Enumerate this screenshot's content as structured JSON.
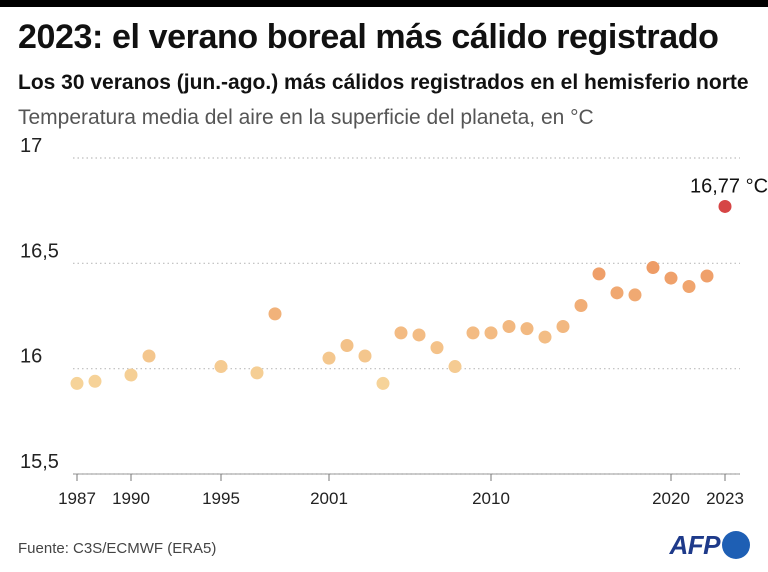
{
  "header": {
    "title": "2023: el verano boreal más cálido registrado",
    "subtitle": "Los 30 veranos (jun.-ago.) más cálidos registrados en el hemisferio norte",
    "unit_label": "Temperatura media del aire en la superficie del planeta, en °C"
  },
  "footer": {
    "source": "Fuente: C3S/ECMWF (ERA5)",
    "logo_text": "AFP"
  },
  "chart_data": {
    "type": "scatter",
    "title": "2023: el verano boreal más cálido registrado",
    "subtitle": "Los 30 veranos (jun.-ago.) más cálidos registrados en el hemisferio norte",
    "ylabel": "Temperatura media del aire en la superficie del planeta, en °C",
    "xlabel": "",
    "xlim": [
      1987,
      2023
    ],
    "ylim": [
      15.5,
      17.0
    ],
    "grid": "horizontal-dotted",
    "x_ticks": [
      1987,
      1990,
      1995,
      2001,
      2010,
      2020,
      2023
    ],
    "y_ticks": [
      {
        "value": 15.5,
        "label": "15,5"
      },
      {
        "value": 16.0,
        "label": "16"
      },
      {
        "value": 16.5,
        "label": "16,5"
      },
      {
        "value": 17.0,
        "label": "17"
      }
    ],
    "color_scale": {
      "low": "#f6d49a",
      "mid": "#ee9a64",
      "high": "#d64545"
    },
    "points": [
      {
        "x": 1987,
        "y": 15.93
      },
      {
        "x": 1988,
        "y": 15.94
      },
      {
        "x": 1990,
        "y": 15.97
      },
      {
        "x": 1991,
        "y": 16.06
      },
      {
        "x": 1995,
        "y": 16.01
      },
      {
        "x": 1997,
        "y": 15.98
      },
      {
        "x": 1998,
        "y": 16.26
      },
      {
        "x": 2001,
        "y": 16.05
      },
      {
        "x": 2002,
        "y": 16.11
      },
      {
        "x": 2003,
        "y": 16.06
      },
      {
        "x": 2004,
        "y": 15.93
      },
      {
        "x": 2005,
        "y": 16.17
      },
      {
        "x": 2006,
        "y": 16.16
      },
      {
        "x": 2007,
        "y": 16.1
      },
      {
        "x": 2008,
        "y": 16.01
      },
      {
        "x": 2009,
        "y": 16.17
      },
      {
        "x": 2010,
        "y": 16.17
      },
      {
        "x": 2011,
        "y": 16.2
      },
      {
        "x": 2012,
        "y": 16.19
      },
      {
        "x": 2013,
        "y": 16.15
      },
      {
        "x": 2014,
        "y": 16.2
      },
      {
        "x": 2015,
        "y": 16.3
      },
      {
        "x": 2016,
        "y": 16.45
      },
      {
        "x": 2017,
        "y": 16.36
      },
      {
        "x": 2018,
        "y": 16.35
      },
      {
        "x": 2019,
        "y": 16.48
      },
      {
        "x": 2020,
        "y": 16.43
      },
      {
        "x": 2021,
        "y": 16.39
      },
      {
        "x": 2022,
        "y": 16.44
      },
      {
        "x": 2023,
        "y": 16.77
      }
    ],
    "annotations": [
      {
        "x": 2023,
        "y": 16.77,
        "text": "16,77 °C"
      }
    ]
  }
}
